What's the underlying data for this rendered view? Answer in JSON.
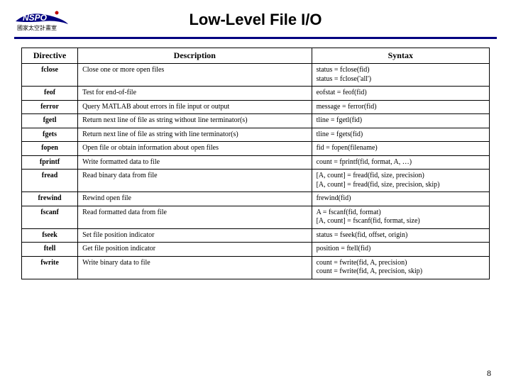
{
  "logo": {
    "text_en": "NSPO",
    "text_zh": "國家太空計畫室",
    "swoosh_color": "#000080",
    "accent_color": "#c00000"
  },
  "title": "Low-Level File I/O",
  "rule_color": "#000080",
  "columns": [
    "Directive",
    "Description",
    "Syntax"
  ],
  "rows": [
    {
      "d": "fclose",
      "desc": "Close one or more open files",
      "syn": "status = fclose(fid)\nstatus = fclose('all')"
    },
    {
      "d": "feof",
      "desc": "Test for end-of-file",
      "syn": "eofstat = feof(fid)"
    },
    {
      "d": "ferror",
      "desc": "Query MATLAB about errors in file input or output",
      "syn": "message = ferror(fid)"
    },
    {
      "d": "fgetl",
      "desc": "Return next line of file as string without line terminator(s)",
      "syn": "tline = fgetl(fid)"
    },
    {
      "d": "fgets",
      "desc": "Return next line of file as string with line terminator(s)",
      "syn": "tline = fgets(fid)"
    },
    {
      "d": "fopen",
      "desc": "Open file or obtain information about open files",
      "syn": "fid = fopen(filename)"
    },
    {
      "d": "fprintf",
      "desc": "Write formatted data to file",
      "syn": "count = fprintf(fid, format, A, …)"
    },
    {
      "d": "fread",
      "desc": "Read binary data from file",
      "syn": "[A, count] = fread(fid, size, precision)\n[A, count] = fread(fid, size, precision, skip)"
    },
    {
      "d": "frewind",
      "desc": "Rewind open file",
      "syn": "frewind(fid)"
    },
    {
      "d": "fscanf",
      "desc": "Read formatted data from file",
      "syn": "A = fscanf(fid, format)\n[A, count] = fscanf(fid, format, size)"
    },
    {
      "d": "fseek",
      "desc": "Set file position indicator",
      "syn": "status = fseek(fid, offset, origin)"
    },
    {
      "d": "ftell",
      "desc": "Get file position indicator",
      "syn": "position = ftell(fid)"
    },
    {
      "d": "fwrite",
      "desc": "Write binary data to file",
      "syn": "count = fwrite(fid, A, precision)\ncount = fwrite(fid, A, precision, skip)"
    }
  ],
  "page_number": "8",
  "fonts": {
    "title_family": "Arial",
    "title_size": 22,
    "header_size": 12,
    "cell_size": 10
  },
  "colors": {
    "border": "#000000",
    "background": "#ffffff",
    "text": "#000000"
  }
}
